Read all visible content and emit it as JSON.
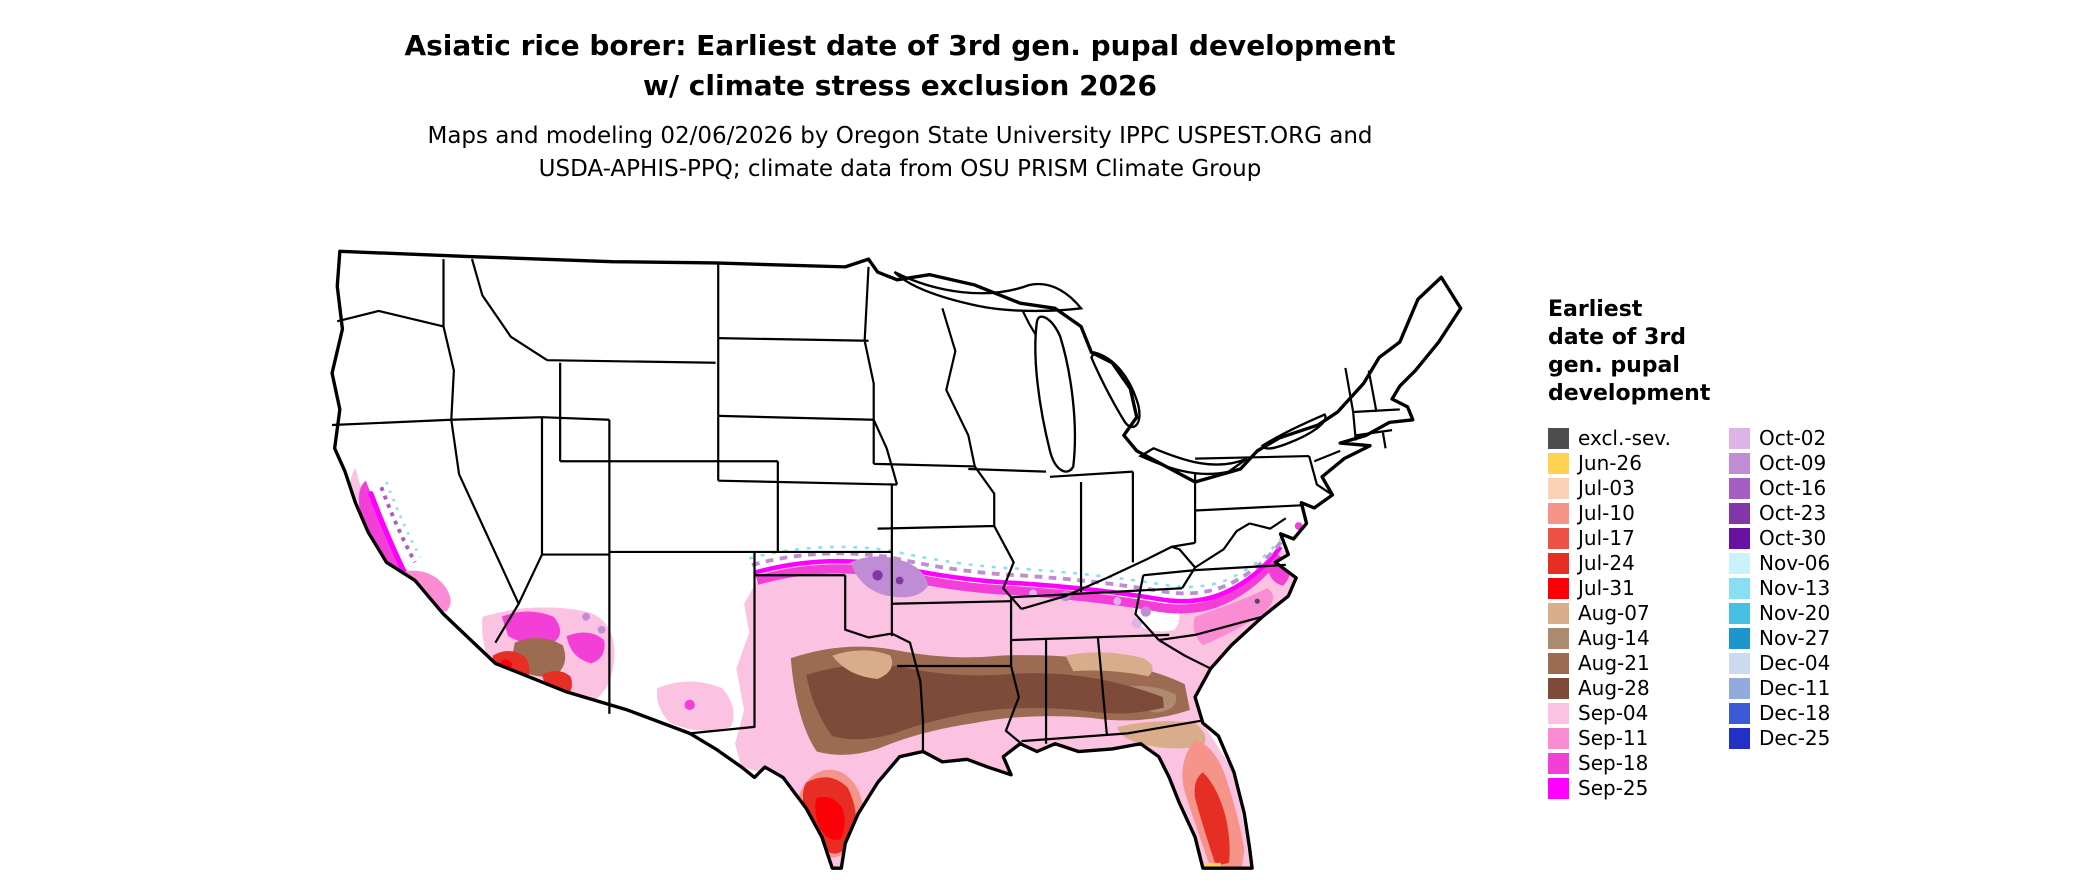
{
  "header": {
    "title_line1": "Asiatic rice borer: Earliest date of 3rd gen. pupal development",
    "title_line2": "w/ climate stress exclusion 2026",
    "subtitle_line1": "Maps and modeling 02/06/2026 by Oregon State University IPPC USPEST.ORG and",
    "subtitle_line2": "USDA-APHIS-PPQ; climate data from OSU PRISM Climate Group"
  },
  "legend": {
    "title": "Earliest\ndate of 3rd\ngen. pupal\ndevelopment",
    "columns": [
      [
        {
          "label": "excl.-sev.",
          "color": "#4d4d4d"
        },
        {
          "label": "Jun-26",
          "color": "#ffd24f"
        },
        {
          "label": "Jul-03",
          "color": "#fbd2b6"
        },
        {
          "label": "Jul-10",
          "color": "#f69489"
        },
        {
          "label": "Jul-17",
          "color": "#ee5145"
        },
        {
          "label": "Jul-24",
          "color": "#e62e24"
        },
        {
          "label": "Jul-31",
          "color": "#fb0007"
        },
        {
          "label": "Aug-07",
          "color": "#d9ad8b"
        },
        {
          "label": "Aug-14",
          "color": "#ad8a70"
        },
        {
          "label": "Aug-21",
          "color": "#9c6b52"
        },
        {
          "label": "Aug-28",
          "color": "#7e4a39"
        },
        {
          "label": "Sep-04",
          "color": "#fbc2e1"
        },
        {
          "label": "Sep-11",
          "color": "#f98cd3"
        },
        {
          "label": "Sep-18",
          "color": "#f33fd8"
        },
        {
          "label": "Sep-25",
          "color": "#fd00ff"
        }
      ],
      [
        {
          "label": "Oct-02",
          "color": "#dcb4e8"
        },
        {
          "label": "Oct-09",
          "color": "#c08cd6"
        },
        {
          "label": "Oct-16",
          "color": "#a55fc2"
        },
        {
          "label": "Oct-23",
          "color": "#8336a8"
        },
        {
          "label": "Oct-30",
          "color": "#6712a0"
        },
        {
          "label": "Nov-06",
          "color": "#c9f2fb"
        },
        {
          "label": "Nov-13",
          "color": "#8adef3"
        },
        {
          "label": "Nov-20",
          "color": "#45bfe3"
        },
        {
          "label": "Nov-27",
          "color": "#1e96cd"
        },
        {
          "label": "Dec-04",
          "color": "#ccd9f0"
        },
        {
          "label": "Dec-11",
          "color": "#93aade"
        },
        {
          "label": "Dec-18",
          "color": "#3b5bd6"
        },
        {
          "label": "Dec-25",
          "color": "#2230c8"
        }
      ]
    ]
  }
}
